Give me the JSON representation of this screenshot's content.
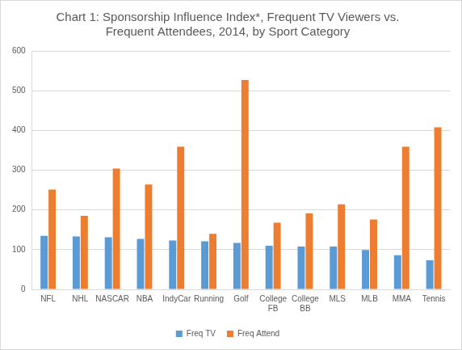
{
  "chart_data": {
    "type": "bar",
    "title": [
      "Chart 1: Sponsorship Influence Index*, Frequent TV Viewers vs.",
      "Frequent Attendees, 2014, by Sport Category"
    ],
    "categories": [
      "NFL",
      "NHL",
      "NASCAR",
      "NBA",
      "IndyCar",
      "Running",
      "Golf",
      "College FB",
      "College BB",
      "MLS",
      "MLB",
      "MMA",
      "Tennis"
    ],
    "series": [
      {
        "name": "Freq TV",
        "color": "#5b9bd5",
        "values": [
          135,
          133,
          131,
          127,
          123,
          121,
          117,
          110,
          108,
          108,
          99,
          86,
          73
        ]
      },
      {
        "name": "Freq Attend",
        "color": "#ed7d31",
        "values": [
          251,
          185,
          304,
          264,
          359,
          140,
          527,
          168,
          191,
          214,
          176,
          359,
          408
        ]
      }
    ],
    "ylim": [
      0,
      600
    ],
    "yticks": [
      0,
      100,
      200,
      300,
      400,
      500,
      600
    ],
    "grid": true,
    "legend": "bottom"
  }
}
